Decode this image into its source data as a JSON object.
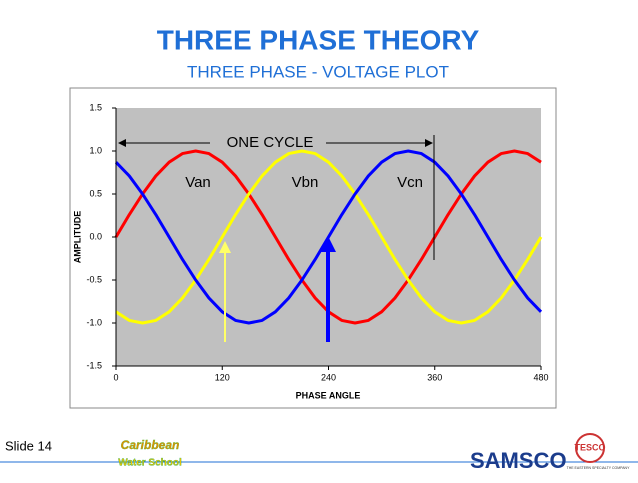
{
  "slide": {
    "title": "THREE PHASE THEORY",
    "subtitle": "THREE PHASE - VOLTAGE PLOT",
    "footer": "Slide 14",
    "logos": {
      "school_top": "Caribbean",
      "school_bottom": "Water School",
      "samsco": "SAMSCO",
      "tesco": "TESCO",
      "tesco_tagline": "THE EASTERN SPECIALTY COMPANY"
    }
  },
  "chart_data": {
    "type": "line",
    "x_label": "PHASE ANGLE",
    "y_label": "AMPLITUDE",
    "annotations": [
      "ONE CYCLE"
    ],
    "x": [
      0,
      15,
      30,
      45,
      60,
      75,
      90,
      105,
      120,
      135,
      150,
      165,
      180,
      195,
      210,
      225,
      240,
      255,
      270,
      285,
      300,
      315,
      330,
      345,
      360,
      375,
      390,
      405,
      420,
      435,
      450,
      465,
      480
    ],
    "series": [
      {
        "name": "Van",
        "color": "#ff0000",
        "values": [
          0,
          0.26,
          0.5,
          0.71,
          0.87,
          0.97,
          1,
          0.97,
          0.87,
          0.71,
          0.5,
          0.26,
          0,
          -0.26,
          -0.5,
          -0.71,
          -0.87,
          -0.97,
          -1,
          -0.97,
          -0.87,
          -0.71,
          -0.5,
          -0.26,
          0,
          0.26,
          0.5,
          0.71,
          0.87,
          0.97,
          1,
          0.97,
          0.87
        ]
      },
      {
        "name": "Vbn",
        "color": "#ffff00",
        "values": [
          -0.87,
          -0.97,
          -1,
          -0.97,
          -0.87,
          -0.71,
          -0.5,
          -0.26,
          0,
          0.26,
          0.5,
          0.71,
          0.87,
          0.97,
          1,
          0.97,
          0.87,
          0.71,
          0.5,
          0.26,
          0,
          -0.26,
          -0.5,
          -0.71,
          -0.87,
          -0.97,
          -1,
          -0.97,
          -0.87,
          -0.71,
          -0.5,
          -0.26,
          0
        ]
      },
      {
        "name": "Vcn",
        "color": "#0000ff",
        "values": [
          0.87,
          0.71,
          0.5,
          0.26,
          0,
          -0.26,
          -0.5,
          -0.71,
          -0.87,
          -0.97,
          -1,
          -0.97,
          -0.87,
          -0.71,
          -0.5,
          -0.26,
          0,
          0.26,
          0.5,
          0.71,
          0.87,
          0.97,
          1,
          0.97,
          0.87,
          0.71,
          0.5,
          0.26,
          0,
          -0.26,
          -0.5,
          -0.71,
          -0.87
        ]
      }
    ],
    "xlim": [
      0,
      480
    ],
    "xticks": [
      0,
      120,
      240,
      360,
      480
    ],
    "ylim": [
      -1.5,
      1.5
    ],
    "yticks": [
      -1.5,
      {
        "value": -1,
        "label": "-1.0"
      },
      -0.5,
      {
        "value": 0,
        "label": "0.0"
      },
      0.5,
      {
        "value": 1,
        "label": "1.0"
      },
      1.5
    ],
    "plot_background": "#c0c0c0"
  }
}
